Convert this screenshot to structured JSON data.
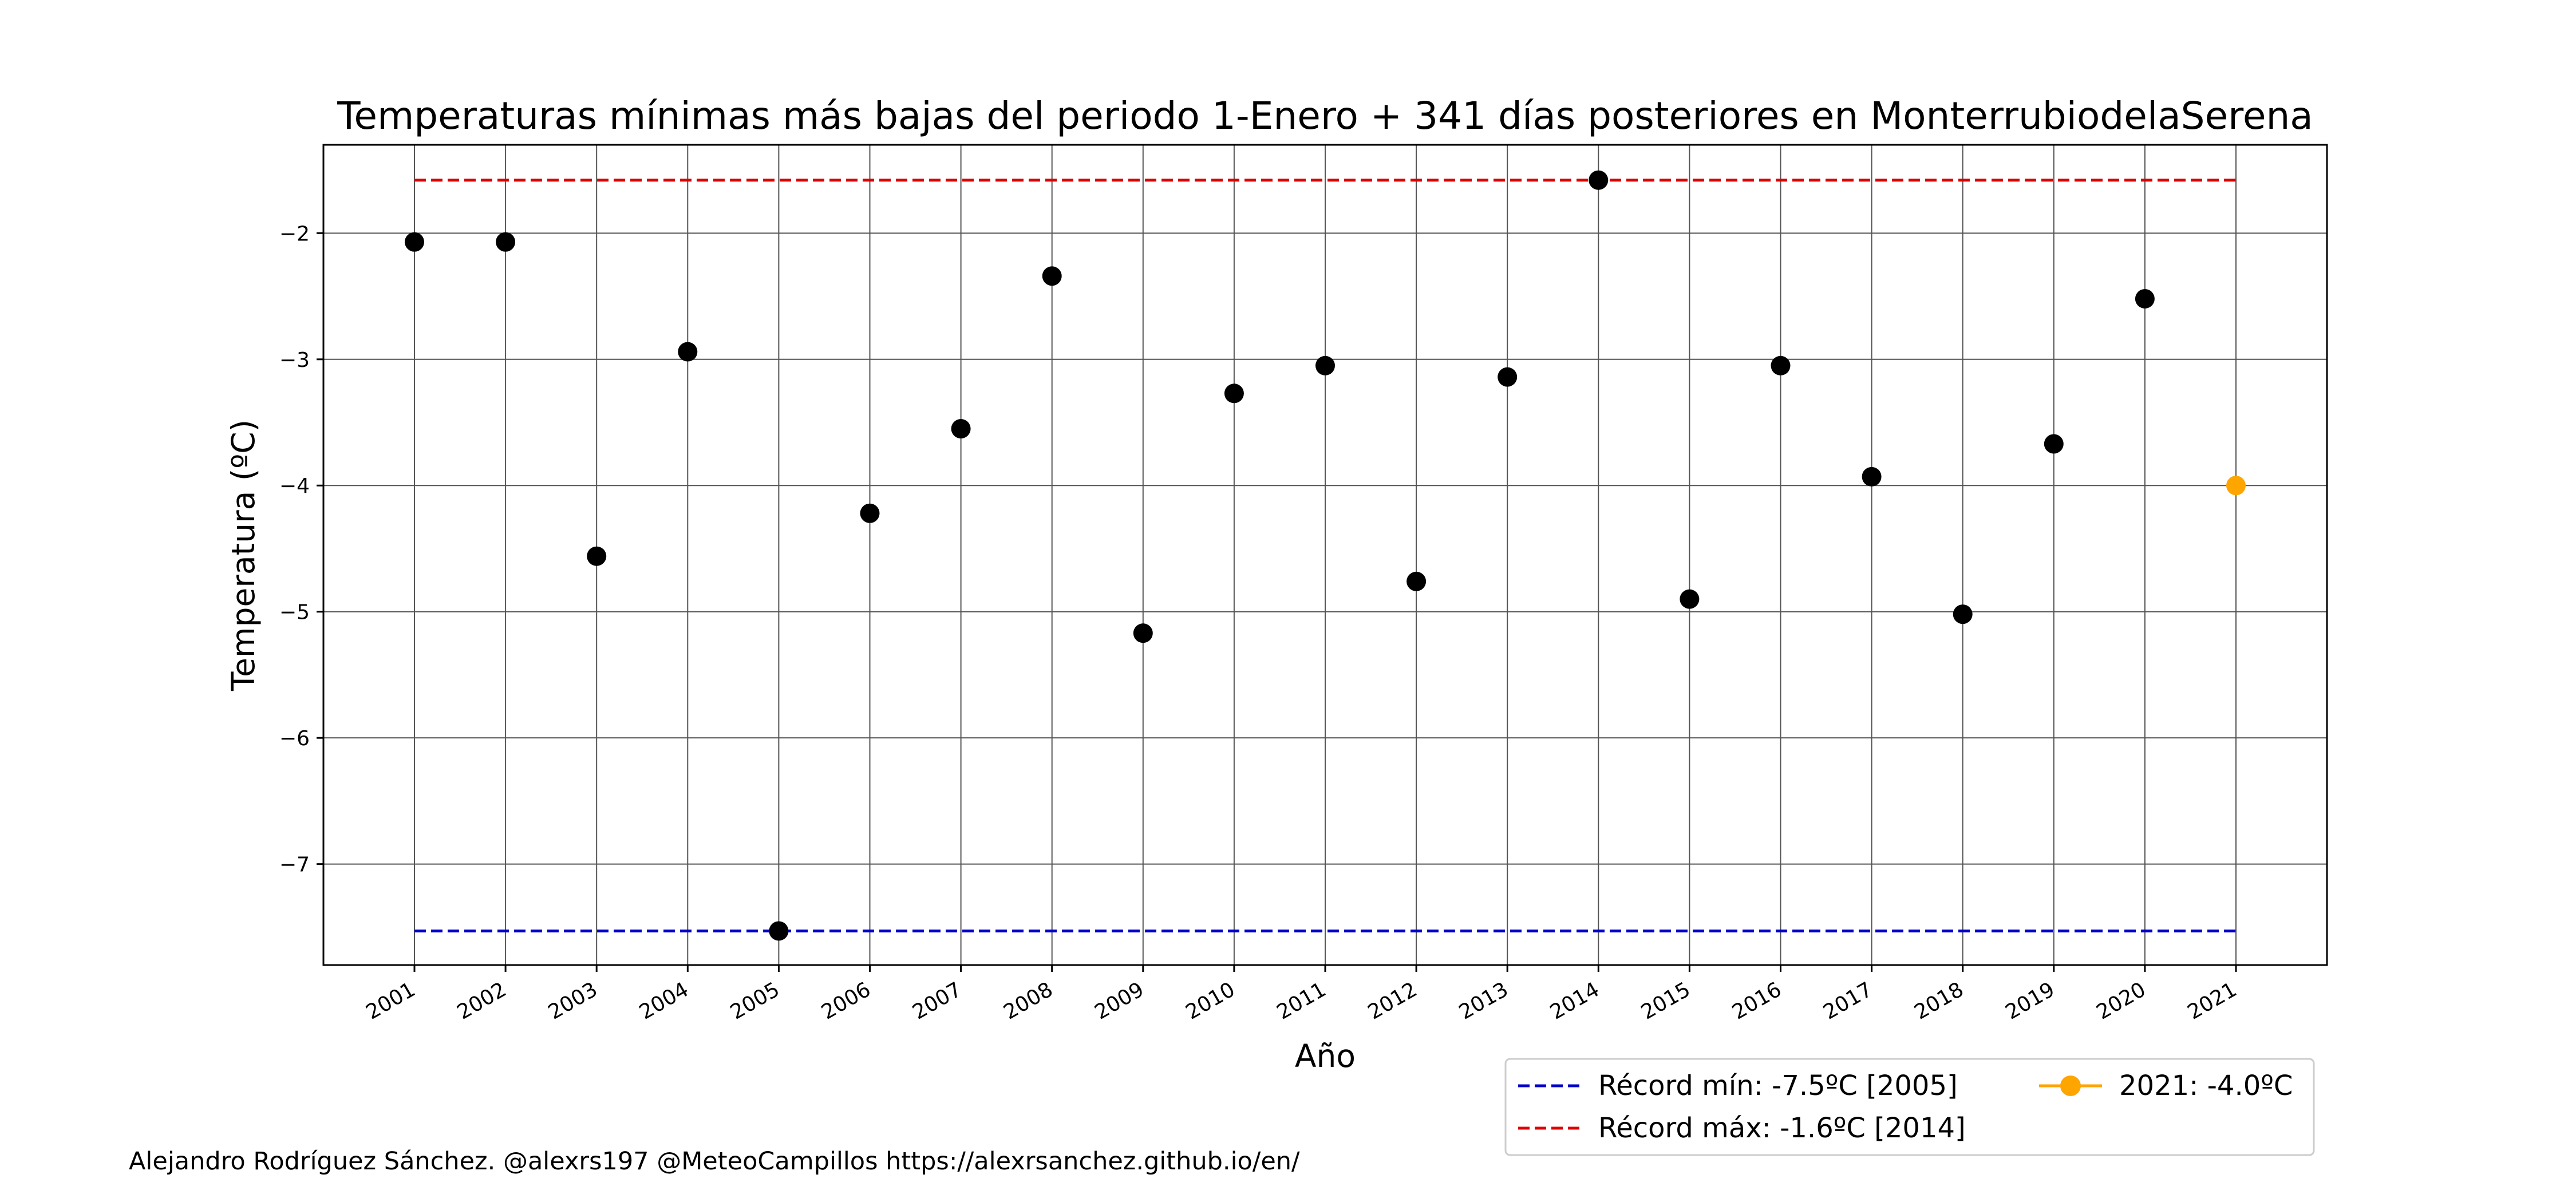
{
  "chart_data": {
    "type": "scatter",
    "title": "Temperaturas mínimas más bajas del periodo 1-Enero + 341 días posteriores en MonterrubiodelaSerena",
    "xlabel": "Año",
    "ylabel": "Temperatura (ºC)",
    "ylim": [
      -7.8,
      -1.3
    ],
    "yticks": [
      -2,
      -3,
      -4,
      -5,
      -6,
      -7
    ],
    "ytick_labels": [
      "−2",
      "−3",
      "−4",
      "−5",
      "−6",
      "−7"
    ],
    "grid": true,
    "categories": [
      "2001",
      "2002",
      "2003",
      "2004",
      "2005",
      "2006",
      "2007",
      "2008",
      "2009",
      "2010",
      "2011",
      "2012",
      "2013",
      "2014",
      "2015",
      "2016",
      "2017",
      "2018",
      "2019",
      "2020",
      "2021"
    ],
    "series": [
      {
        "values": [
          -2.07,
          -2.07,
          -4.56,
          -2.94,
          -7.53,
          -4.22,
          -3.55,
          -2.34,
          -5.17,
          -3.27,
          -3.05,
          -4.76,
          -3.14,
          -1.58,
          -4.9,
          -3.05,
          -3.93,
          -5.02,
          -3.67,
          -2.52,
          null
        ],
        "color": "#000000"
      },
      {
        "name": "2021: -4.0ºC",
        "values": [
          null,
          null,
          null,
          null,
          null,
          null,
          null,
          null,
          null,
          null,
          null,
          null,
          null,
          null,
          null,
          null,
          null,
          null,
          null,
          null,
          -4.0
        ],
        "color": "#FFA500"
      }
    ],
    "reference_lines": [
      {
        "name": "Récord mín: -7.5ºC [2005]",
        "value": -7.53,
        "color": "#0000CC",
        "style": "dashed"
      },
      {
        "name": "Récord máx: -1.6ºC [2014]",
        "value": -1.58,
        "color": "#DD0000",
        "style": "dashed"
      }
    ],
    "legend_placement": "bottom-right, below axes"
  },
  "credit": "Alejandro Rodríguez Sánchez. @alexrs197 @MeteoCampillos   https://alexrsanchez.github.io/en/"
}
